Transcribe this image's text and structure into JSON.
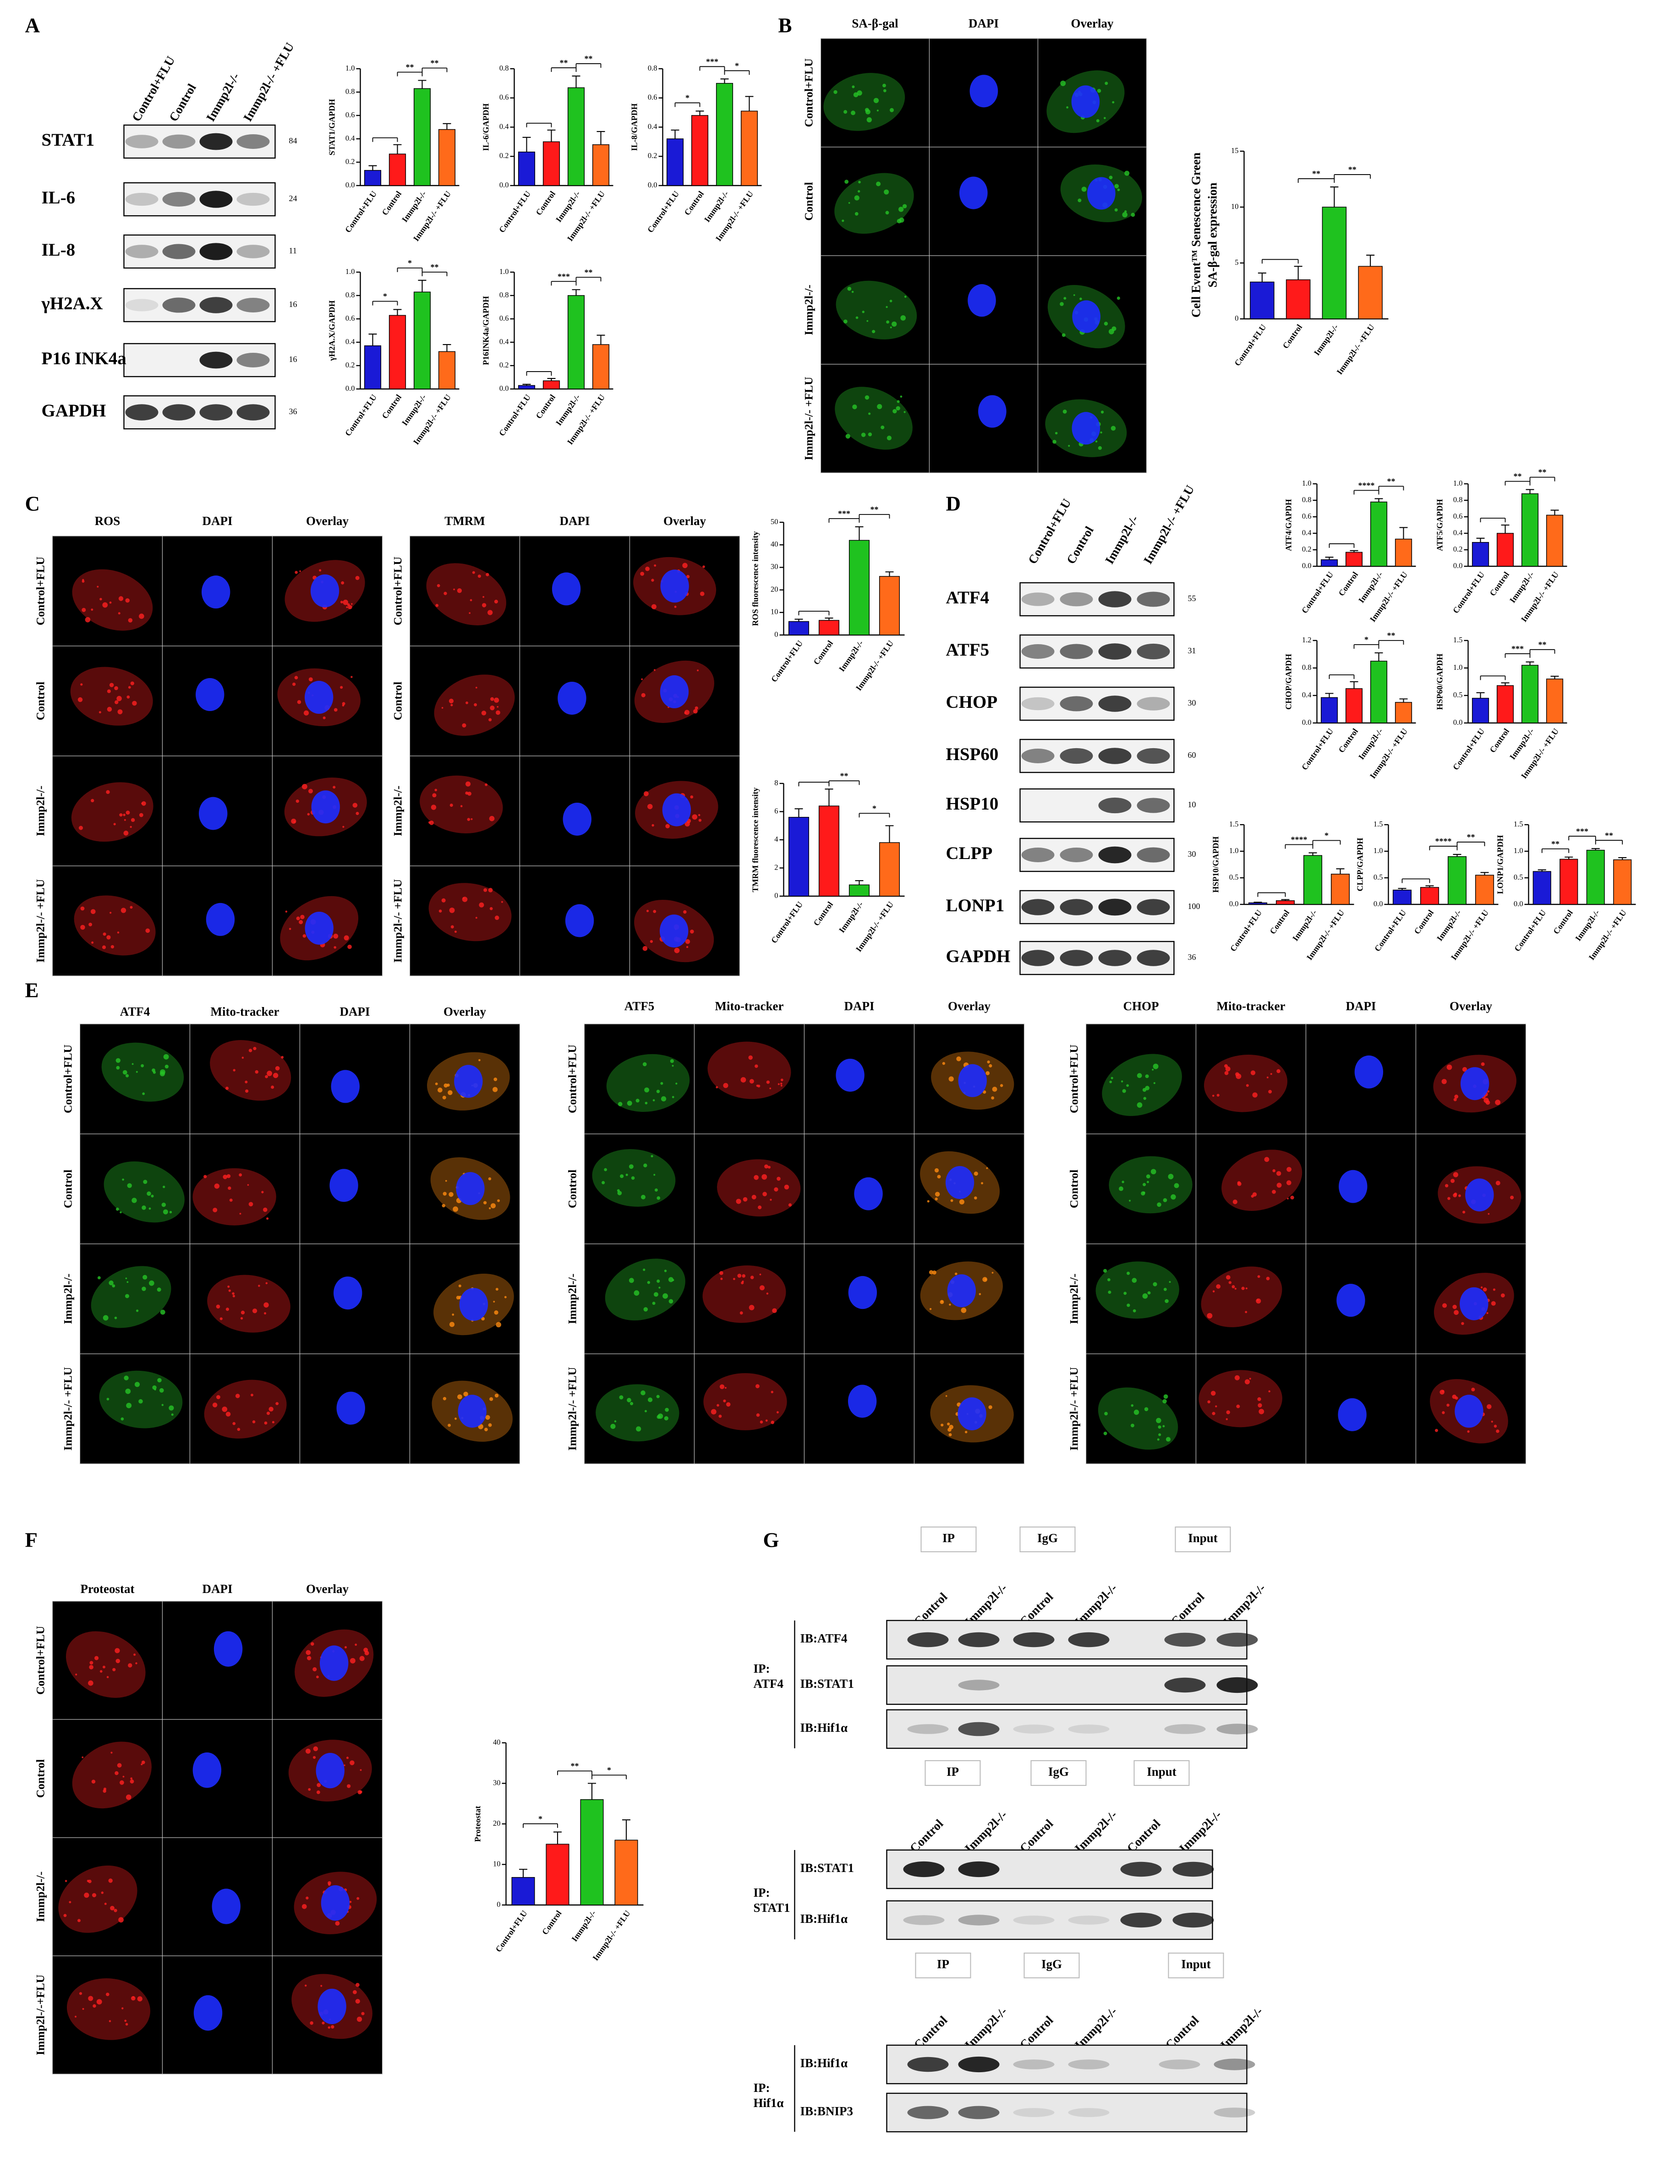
{
  "chart_data": [
    {
      "type": "bar",
      "y_label": "STAT1/GAPDH",
      "categories": [
        "Control+FLU",
        "Control",
        "Immp2l-/-",
        "Immp2l-/- +FLU"
      ],
      "colors": [
        "#1a1ad6",
        "#ff1a1a",
        "#1fc21f",
        "#ff6a1a"
      ],
      "values": [
        0.13,
        0.27,
        0.83,
        0.48
      ],
      "errors": [
        0.04,
        0.08,
        0.07,
        0.05
      ],
      "significance": [
        "**",
        "**"
      ],
      "ylim": [
        0,
        1
      ],
      "yticks": [
        {
          "value": 0,
          "label": "0.0"
        },
        0.2,
        0.4,
        0.6,
        0.8,
        {
          "value": 1,
          "label": "1.0"
        }
      ]
    },
    {
      "type": "bar",
      "y_label": "IL-6/GAPDH",
      "categories": [
        "Control+FLU",
        "Control",
        "Immp2l-/-",
        "Immp2l-/- +FLU"
      ],
      "colors": [
        "#1a1ad6",
        "#ff1a1a",
        "#1fc21f",
        "#ff6a1a"
      ],
      "values": [
        0.23,
        0.3,
        0.67,
        0.28
      ],
      "errors": [
        0.1,
        0.08,
        0.08,
        0.09
      ],
      "significance": [
        "**",
        "**"
      ],
      "ylim": [
        0,
        0.8
      ],
      "yticks": [
        {
          "value": 0,
          "label": "0.0"
        },
        0.2,
        0.4,
        0.6,
        0.8
      ]
    },
    {
      "type": "bar",
      "y_label": "IL-8/GAPDH",
      "categories": [
        "Control+FLU",
        "Control",
        "Immp2l-/-",
        "Immp2l-/- +FLU"
      ],
      "colors": [
        "#1a1ad6",
        "#ff1a1a",
        "#1fc21f",
        "#ff6a1a"
      ],
      "values": [
        0.32,
        0.48,
        0.7,
        0.51
      ],
      "errors": [
        0.06,
        0.03,
        0.03,
        0.1
      ],
      "significance": [
        "*",
        "***",
        "*"
      ],
      "ylim": [
        0,
        0.8
      ],
      "yticks": [
        {
          "value": 0,
          "label": "0.0"
        },
        0.2,
        0.4,
        0.6,
        0.8
      ]
    },
    {
      "type": "bar",
      "y_label": "γH2A.X/GAPDH",
      "categories": [
        "Control+FLU",
        "Control",
        "Immp2l-/-",
        "Immp2l-/- +FLU"
      ],
      "colors": [
        "#1a1ad6",
        "#ff1a1a",
        "#1fc21f",
        "#ff6a1a"
      ],
      "values": [
        0.37,
        0.63,
        0.83,
        0.32
      ],
      "errors": [
        0.1,
        0.05,
        0.1,
        0.06
      ],
      "significance": [
        "*",
        "*",
        "**"
      ],
      "ylim": [
        0,
        1
      ],
      "yticks": [
        {
          "value": 0,
          "label": "0.0"
        },
        0.2,
        0.4,
        0.6,
        0.8,
        {
          "value": 1,
          "label": "1.0"
        }
      ]
    },
    {
      "type": "bar",
      "y_label": "P16INK4a/GAPDH",
      "categories": [
        "Control+FLU",
        "Control",
        "Immp2l-/-",
        "Immp2l-/- +FLU"
      ],
      "colors": [
        "#1a1ad6",
        "#ff1a1a",
        "#1fc21f",
        "#ff6a1a"
      ],
      "values": [
        0.03,
        0.07,
        0.8,
        0.38
      ],
      "errors": [
        0.01,
        0.02,
        0.05,
        0.08
      ],
      "significance": [
        "***",
        "**"
      ],
      "ylim": [
        0,
        1
      ],
      "yticks": [
        {
          "value": 0,
          "label": "0.0"
        },
        0.2,
        0.4,
        0.6,
        0.8,
        {
          "value": 1,
          "label": "1.0"
        }
      ]
    },
    {
      "type": "bar",
      "y_label": [
        "Cell Event™ Senescence Green",
        "SA-β-gal expression"
      ],
      "categories": [
        "Control+FLU",
        "Control",
        "Immp2l-/-",
        "Immp2l-/- +FLU"
      ],
      "colors": [
        "#1a1ad6",
        "#ff1a1a",
        "#1fc21f",
        "#ff6a1a"
      ],
      "values": [
        3.3,
        3.5,
        10,
        4.7
      ],
      "errors": [
        0.8,
        1.2,
        1.8,
        1
      ],
      "significance": [
        "**",
        "**"
      ],
      "ylim": [
        0,
        15
      ],
      "yticks": [
        0,
        5,
        10,
        15
      ]
    },
    {
      "type": "bar",
      "y_label": "ROS fluorescence intensity",
      "categories": [
        "Control+FLU",
        "Control",
        "Immp2l-/-",
        "Immp2l-/- +FLU"
      ],
      "colors": [
        "#1a1ad6",
        "#ff1a1a",
        "#1fc21f",
        "#ff6a1a"
      ],
      "values": [
        6,
        6.5,
        42,
        26
      ],
      "errors": [
        1,
        1,
        6,
        2
      ],
      "significance": [
        "***",
        "**"
      ],
      "ylim": [
        0,
        50
      ],
      "yticks": [
        0,
        10,
        20,
        30,
        40,
        50
      ]
    },
    {
      "type": "bar",
      "y_label": "TMRM fluorescence intensity",
      "categories": [
        "Control+FLU",
        "Control",
        "Immp2l-/-",
        "Immp2l-/- +FLU"
      ],
      "colors": [
        "#1a1ad6",
        "#ff1a1a",
        "#1fc21f",
        "#ff6a1a"
      ],
      "values": [
        5.6,
        6.4,
        0.8,
        3.8
      ],
      "errors": [
        0.6,
        1.2,
        0.3,
        1.2
      ],
      "significance": [
        "**",
        "*"
      ],
      "ylim": [
        0,
        8
      ],
      "yticks": [
        0,
        2,
        4,
        6,
        8
      ]
    },
    {
      "type": "bar",
      "y_label": "ATF4/GAPDH",
      "categories": [
        "Control+FLU",
        "Control",
        "Immp2l-/-",
        "Immp2l-/- +FLU"
      ],
      "colors": [
        "#1a1ad6",
        "#ff1a1a",
        "#1fc21f",
        "#ff6a1a"
      ],
      "values": [
        0.08,
        0.17,
        0.78,
        0.33
      ],
      "errors": [
        0.03,
        0.02,
        0.04,
        0.14
      ],
      "significance": [
        "****",
        "**"
      ],
      "ylim": [
        0,
        1
      ],
      "yticks": [
        {
          "value": 0,
          "label": "0.0"
        },
        0.2,
        0.4,
        0.6,
        0.8,
        {
          "value": 1,
          "label": "1.0"
        }
      ]
    },
    {
      "type": "bar",
      "y_label": "ATF5/GAPDH",
      "categories": [
        "Control+FLU",
        "Control",
        "Immp2l-/-",
        "Immp2l-/- +FLU"
      ],
      "colors": [
        "#1a1ad6",
        "#ff1a1a",
        "#1fc21f",
        "#ff6a1a"
      ],
      "values": [
        0.29,
        0.4,
        0.88,
        0.62
      ],
      "errors": [
        0.05,
        0.1,
        0.05,
        0.06
      ],
      "significance": [
        "**",
        "**"
      ],
      "ylim": [
        0,
        1
      ],
      "yticks": [
        {
          "value": 0,
          "label": "0.0"
        },
        0.2,
        0.4,
        0.6,
        0.8,
        {
          "value": 1,
          "label": "1.0"
        }
      ]
    },
    {
      "type": "bar",
      "y_label": "CHOP/GAPDH",
      "categories": [
        "Control+FLU",
        "Control",
        "Immp2l-/-",
        "Immp2l-/- +FLU"
      ],
      "colors": [
        "#1a1ad6",
        "#ff1a1a",
        "#1fc21f",
        "#ff6a1a"
      ],
      "values": [
        0.37,
        0.5,
        0.9,
        0.3
      ],
      "errors": [
        0.06,
        0.1,
        0.12,
        0.05
      ],
      "significance": [
        "*",
        "**"
      ],
      "ylim": [
        0,
        1.2
      ],
      "yticks": [
        {
          "value": 0,
          "label": "0.0"
        },
        0.4,
        0.8,
        1.2
      ]
    },
    {
      "type": "bar",
      "y_label": "HSP60/GAPDH",
      "categories": [
        "Control+FLU",
        "Control",
        "Immp2l-/-",
        "Immp2l-/- +FLU"
      ],
      "colors": [
        "#1a1ad6",
        "#ff1a1a",
        "#1fc21f",
        "#ff6a1a"
      ],
      "values": [
        0.45,
        0.68,
        1.05,
        0.8
      ],
      "errors": [
        0.1,
        0.05,
        0.06,
        0.05
      ],
      "significance": [
        "***",
        "**"
      ],
      "ylim": [
        0,
        1.5
      ],
      "yticks": [
        {
          "value": 0,
          "label": "0.0"
        },
        0.5,
        {
          "value": 1,
          "label": "1.0"
        },
        1.5
      ]
    },
    {
      "type": "bar",
      "y_label": "HSP10/GAPDH",
      "categories": [
        "Control+FLU",
        "Control",
        "Immp2l-/-",
        "Immp2l-/- +FLU"
      ],
      "colors": [
        "#1a1ad6",
        "#ff1a1a",
        "#1fc21f",
        "#ff6a1a"
      ],
      "values": [
        0.03,
        0.07,
        0.92,
        0.57
      ],
      "errors": [
        0.01,
        0.02,
        0.05,
        0.1
      ],
      "significance": [
        "****",
        "*"
      ],
      "ylim": [
        0,
        1.5
      ],
      "yticks": [
        {
          "value": 0,
          "label": "0.0"
        },
        0.5,
        {
          "value": 1,
          "label": "1.0"
        },
        1.5
      ]
    },
    {
      "type": "bar",
      "y_label": "CLPP/GAPDH",
      "categories": [
        "Control+FLU",
        "Control",
        "Immp2l-/-",
        "Immp2l-/- +FLU"
      ],
      "colors": [
        "#1a1ad6",
        "#ff1a1a",
        "#1fc21f",
        "#ff6a1a"
      ],
      "values": [
        0.27,
        0.32,
        0.9,
        0.55
      ],
      "errors": [
        0.03,
        0.03,
        0.04,
        0.05
      ],
      "significance": [
        "****",
        "**"
      ],
      "ylim": [
        0,
        1.5
      ],
      "yticks": [
        {
          "value": 0,
          "label": "0.0"
        },
        0.5,
        {
          "value": 1,
          "label": "1.0"
        },
        1.5
      ]
    },
    {
      "type": "bar",
      "y_label": "LONP1/GAPDH",
      "categories": [
        "Control+FLU",
        "Control",
        "Immp2l-/-",
        "Immp2l-/- +FLU"
      ],
      "colors": [
        "#1a1ad6",
        "#ff1a1a",
        "#1fc21f",
        "#ff6a1a"
      ],
      "values": [
        0.62,
        0.85,
        1.02,
        0.84
      ],
      "errors": [
        0.03,
        0.04,
        0.03,
        0.04
      ],
      "significance": [
        "**",
        "***",
        "**"
      ],
      "ylim": [
        0,
        1.5
      ],
      "yticks": [
        {
          "value": 0,
          "label": "0.0"
        },
        0.5,
        {
          "value": 1,
          "label": "1.0"
        },
        1.5
      ]
    },
    {
      "type": "bar",
      "y_label": "Proteostat",
      "categories": [
        "Control+FLU",
        "Control",
        "Immp2l-/-",
        "Immp2l-/- +FLU"
      ],
      "colors": [
        "#1a1ad6",
        "#ff1a1a",
        "#1fc21f",
        "#ff6a1a"
      ],
      "values": [
        6.8,
        15,
        26,
        16
      ],
      "errors": [
        2,
        3,
        4,
        5
      ],
      "significance": [
        "*",
        "**",
        "*"
      ],
      "ylim": [
        0,
        40
      ],
      "yticks": [
        0,
        10,
        20,
        30,
        40
      ]
    }
  ],
  "figure": {
    "A": {
      "letter": "A",
      "lanes": [
        "Control+FLU",
        "Control",
        "Immp2l-/-",
        "Immp2l-/- +FLU"
      ],
      "blots": [
        {
          "label": "STAT1",
          "kda": 84
        },
        {
          "label": "IL-6",
          "kda": 24
        },
        {
          "label": "IL-8",
          "kda": 11
        },
        {
          "label": "γH2A.X",
          "kda": 16
        },
        {
          "label": "P16 INK4a",
          "kda": 16
        },
        {
          "label": "GAPDH",
          "kda": 36
        }
      ]
    },
    "B": {
      "letter": "B",
      "columns": [
        "SA-β-gal",
        "DAPI",
        "Overlay"
      ],
      "rows": [
        "Control+FLU",
        "Control",
        "Immp2l-/-",
        "Immp2l-/- +FLU"
      ]
    },
    "C": {
      "letter": "C",
      "grids": [
        {
          "columns": [
            "ROS",
            "DAPI",
            "Overlay"
          ],
          "rows": [
            "Control+FLU",
            "Control",
            "Immp2l-/-",
            "Immp2l-/- +FLU"
          ]
        },
        {
          "columns": [
            "TMRM",
            "DAPI",
            "Overlay"
          ],
          "rows": [
            "Control+FLU",
            "Control",
            "Immp2l-/-",
            "Immp2l-/- +FLU"
          ]
        }
      ]
    },
    "D": {
      "letter": "D",
      "lanes": [
        "Control+FLU",
        "Control",
        "Immp2l-/-",
        "Immp2l-/- +FLU"
      ],
      "blots": [
        {
          "label": "ATF4",
          "kda": 55
        },
        {
          "label": "ATF5",
          "kda": 31
        },
        {
          "label": "CHOP",
          "kda": 30
        },
        {
          "label": "HSP60",
          "kda": 60
        },
        {
          "label": "HSP10",
          "kda": 10
        },
        {
          "label": "CLPP",
          "kda": 30
        },
        {
          "label": "LONP1",
          "kda": 100
        },
        {
          "label": "GAPDH",
          "kda": 36
        }
      ]
    },
    "E": {
      "letter": "E",
      "grids": [
        {
          "columns": [
            "ATF4",
            "Mito-tracker",
            "DAPI",
            "Overlay"
          ],
          "rows": [
            "Control+FLU",
            "Control",
            "Immp2l-/-",
            "Immp2l-/- +FLU"
          ]
        },
        {
          "columns": [
            "ATF5",
            "Mito-tracker",
            "DAPI",
            "Overlay"
          ],
          "rows": [
            "Control+FLU",
            "Control",
            "Immp2l-/-",
            "Immp2l-/- +FLU"
          ]
        },
        {
          "columns": [
            "CHOP",
            "Mito-tracker",
            "DAPI",
            "Overlay"
          ],
          "rows": [
            "Control+FLU",
            "Control",
            "Immp2l-/-",
            "Immp2l-/- +FLU"
          ]
        }
      ]
    },
    "F": {
      "letter": "F",
      "columns": [
        "Proteostat",
        "DAPI",
        "Overlay"
      ],
      "rows": [
        "Control+FLU",
        "Control",
        "Immp2l-/-",
        "Immp2l-/-+FLU"
      ]
    },
    "G": {
      "letter": "G",
      "blocks": [
        {
          "headers": [
            "IP",
            "IgG",
            "Input"
          ],
          "lanes": [
            "Control",
            "Immp2l-/-",
            "Control",
            "Immp2l-/-",
            "Control",
            "Immp2l-/-"
          ],
          "ip": [
            "IP:",
            "ATF4"
          ],
          "blots": [
            "IB:ATF4",
            "IB:STAT1",
            "IB:Hif1α"
          ]
        },
        {
          "headers": [
            "IP",
            "IgG",
            "Input"
          ],
          "lanes": [
            "Control",
            "Immp2l-/-",
            "Control",
            "Immp2l-/-",
            "Control",
            "Immp2l-/-"
          ],
          "ip": [
            "IP:",
            "STAT1"
          ],
          "blots": [
            "IB:STAT1",
            "IB:Hif1α"
          ]
        },
        {
          "headers": [
            "IP",
            "IgG",
            "Input"
          ],
          "lanes": [
            "Control",
            "Immp2l-/-",
            "Control",
            "Immp2l-/-",
            "Control",
            "Immp2l-/-"
          ],
          "ip": [
            "IP:",
            "Hif1α"
          ],
          "blots": [
            "IB:Hif1α",
            "IB:BNIP3"
          ]
        }
      ]
    }
  }
}
